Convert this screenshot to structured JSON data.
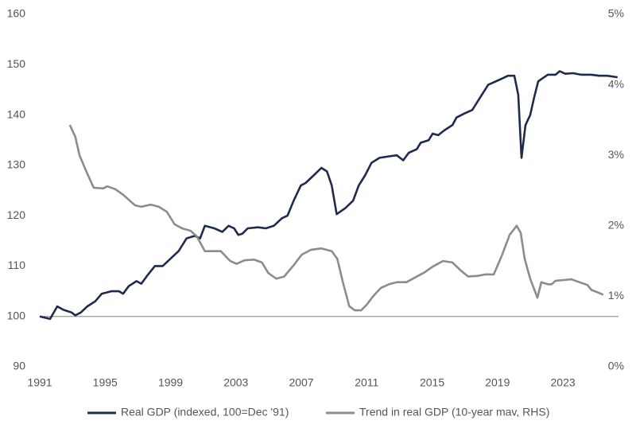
{
  "chart_data": {
    "type": "line",
    "xlim": [
      1991,
      2026.4
    ],
    "xticks": [
      1991,
      1995,
      1999,
      2003,
      2007,
      2011,
      2015,
      2019,
      2023
    ],
    "ylim": [
      90,
      160
    ],
    "yticks": [
      90,
      100,
      110,
      120,
      130,
      140,
      150,
      160
    ],
    "y2lim": [
      0,
      5
    ],
    "y2ticks": [
      {
        "value": 0,
        "label": "0%"
      },
      {
        "value": 1,
        "label": "1%"
      },
      {
        "value": 2,
        "label": "2%"
      },
      {
        "value": 3,
        "label": "3%"
      },
      {
        "value": 4,
        "label": "4%"
      },
      {
        "value": 5,
        "label": "5%"
      }
    ],
    "reference_line": 100,
    "legend": "bottom",
    "series": [
      {
        "name": "Real GDP (indexed, 100=Dec '91)",
        "color": "#1f2a4d",
        "x": [
          1991.0,
          1991.63,
          1992.07,
          1992.46,
          1992.94,
          1993.18,
          1993.52,
          1993.91,
          1994.4,
          1994.79,
          1995.37,
          1995.85,
          1996.1,
          1996.44,
          1996.92,
          1997.21,
          1997.55,
          1998.04,
          1998.52,
          1999.01,
          1999.5,
          1999.98,
          2000.47,
          2000.81,
          2001.1,
          2001.68,
          2002.17,
          2002.55,
          2002.89,
          2003.14,
          2003.38,
          2003.72,
          2004.35,
          2004.83,
          2005.32,
          2005.81,
          2006.15,
          2006.53,
          2006.97,
          2007.26,
          2007.75,
          2008.23,
          2008.57,
          2008.86,
          2009.16,
          2009.69,
          2010.17,
          2010.51,
          2010.9,
          2011.29,
          2011.78,
          2012.36,
          2012.84,
          2013.23,
          2013.57,
          2014.06,
          2014.3,
          2014.79,
          2015.03,
          2015.37,
          2015.76,
          2016.24,
          2016.49,
          2016.97,
          2017.46,
          2017.94,
          2018.43,
          2018.77,
          2019.25,
          2019.64,
          2020.03,
          2020.27,
          2020.47,
          2020.71,
          2021.0,
          2021.24,
          2021.49,
          2022.07,
          2022.55,
          2022.8,
          2023.14,
          2023.62,
          2024.11,
          2024.74,
          2025.22,
          2025.71,
          2026.34
        ],
        "values": [
          100,
          99.5,
          102,
          101.3,
          100.8,
          100.2,
          100.8,
          102,
          103,
          104.5,
          105,
          105,
          104.5,
          106,
          107,
          106.5,
          108,
          110,
          110,
          111.5,
          113,
          115.5,
          116,
          115.5,
          118,
          117.5,
          116.8,
          118,
          117.5,
          116.2,
          116.4,
          117.5,
          117.7,
          117.5,
          118,
          119.5,
          120,
          123,
          126,
          126.5,
          128,
          129.5,
          128.8,
          126,
          120.3,
          121.5,
          123,
          126,
          128,
          130.5,
          131.5,
          131.8,
          132,
          131,
          132.5,
          133.2,
          134.5,
          135,
          136.3,
          136,
          137,
          138,
          139.5,
          140.3,
          141,
          143.5,
          146,
          146.5,
          147.2,
          147.8,
          147.8,
          144,
          131.5,
          138,
          140,
          143.5,
          146.7,
          148,
          148,
          148.7,
          148.2,
          148.3,
          148,
          148,
          147.8,
          147.8,
          147.5
        ]
      },
      {
        "name": "Trend in real GDP (10-year mav, RHS)",
        "color": "#8c8c8c",
        "axis": "y2",
        "x": [
          1992.84,
          1993.18,
          1993.43,
          1993.91,
          1994.3,
          1994.88,
          1995.13,
          1995.61,
          1996.1,
          1996.83,
          1997.21,
          1997.8,
          1998.28,
          1998.77,
          1999.25,
          1999.74,
          2000.22,
          2000.61,
          2001.1,
          2001.58,
          2002.07,
          2002.65,
          2003.04,
          2003.52,
          2004.11,
          2004.59,
          2004.98,
          2005.47,
          2005.95,
          2006.53,
          2007.02,
          2007.6,
          2008.23,
          2008.86,
          2009.2,
          2009.54,
          2009.93,
          2010.27,
          2010.66,
          2011.0,
          2011.39,
          2011.87,
          2012.36,
          2012.84,
          2013.43,
          2014.06,
          2014.54,
          2015.03,
          2015.66,
          2016.24,
          2016.73,
          2017.21,
          2017.8,
          2018.28,
          2018.77,
          2019.25,
          2019.74,
          2020.17,
          2020.42,
          2020.66,
          2021.0,
          2021.44,
          2021.68,
          2022.07,
          2022.31,
          2022.55,
          2023.04,
          2023.52,
          2024.01,
          2024.5,
          2024.74,
          2025.08,
          2025.47
        ],
        "values": [
          3.43,
          3.26,
          3.0,
          2.74,
          2.54,
          2.53,
          2.56,
          2.52,
          2.44,
          2.29,
          2.27,
          2.3,
          2.27,
          2.2,
          2.02,
          1.96,
          1.93,
          1.85,
          1.64,
          1.64,
          1.64,
          1.5,
          1.46,
          1.51,
          1.52,
          1.48,
          1.33,
          1.25,
          1.28,
          1.44,
          1.59,
          1.66,
          1.68,
          1.64,
          1.53,
          1.2,
          0.86,
          0.8,
          0.8,
          0.88,
          1.0,
          1.12,
          1.17,
          1.2,
          1.2,
          1.28,
          1.34,
          1.42,
          1.5,
          1.48,
          1.37,
          1.28,
          1.29,
          1.31,
          1.31,
          1.57,
          1.87,
          2.0,
          1.9,
          1.53,
          1.25,
          0.98,
          1.2,
          1.17,
          1.17,
          1.22,
          1.23,
          1.24,
          1.2,
          1.16,
          1.09,
          1.06,
          1.02
        ]
      }
    ]
  }
}
